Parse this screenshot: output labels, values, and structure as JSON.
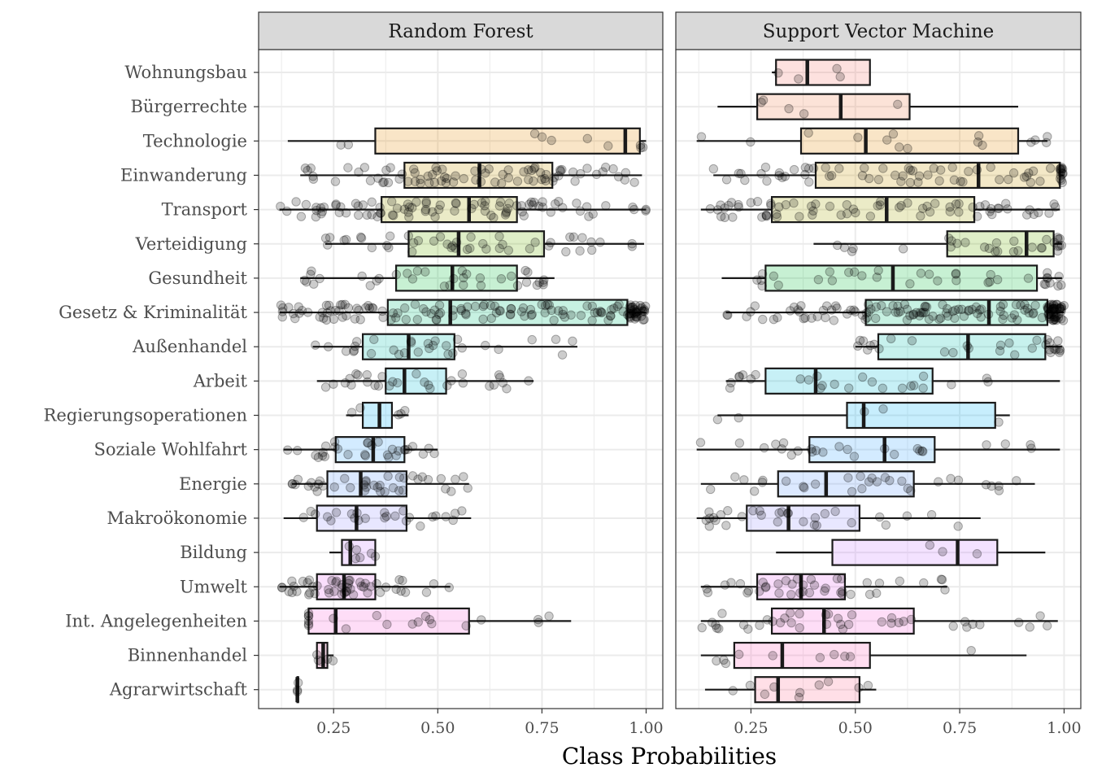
{
  "chart_data": {
    "type": "boxplot",
    "xlabel": "Class Probabilities",
    "ylabel": "",
    "xlim": [
      0.07,
      1.04
    ],
    "x_ticks": [
      0.25,
      0.5,
      0.75,
      1.0
    ],
    "x_tick_labels": [
      "0.25",
      "0.50",
      "0.75",
      "1.00"
    ],
    "grid": true,
    "legend": "none",
    "categories": [
      "Wohnungsbau",
      "Bürgerrechte",
      "Technologie",
      "Einwanderung",
      "Transport",
      "Verteidigung",
      "Gesundheit",
      "Gesetz & Kriminalität",
      "Außenhandel",
      "Arbeit",
      "Regierungsoperationen",
      "Soziale Wohlfahrt",
      "Energie",
      "Makroökonomie",
      "Bildung",
      "Umwelt",
      "Int. Angelegenheiten",
      "Binnenhandel",
      "Agrarwirtschaft"
    ],
    "colors": [
      "#F8766D",
      "#F07E4E",
      "#E58700",
      "#C99800",
      "#A3A500",
      "#6BB100",
      "#00BA38",
      "#00BF7D",
      "#00C0AF",
      "#00BCD8",
      "#00B0F6",
      "#35A2FF",
      "#619CFF",
      "#9590FF",
      "#C77CFF",
      "#E76BF3",
      "#FA62DB",
      "#FF62BC",
      "#FF6C91"
    ],
    "panels": [
      {
        "name": "Random Forest",
        "boxes": [
          {
            "category": "Agrarwirtschaft",
            "whisker_low": 0.163,
            "q1": 0.163,
            "median": 0.163,
            "q3": 0.165,
            "whisker_high": 0.165,
            "n_points": 3
          },
          {
            "category": "Binnenhandel",
            "whisker_low": 0.21,
            "q1": 0.21,
            "median": 0.225,
            "q3": 0.235,
            "whisker_high": 0.25,
            "n_points": 5
          },
          {
            "category": "Int. Angelegenheiten",
            "whisker_low": 0.19,
            "q1": 0.19,
            "median": 0.255,
            "q3": 0.575,
            "whisker_high": 0.82,
            "n_points": 20
          },
          {
            "category": "Umwelt",
            "whisker_low": 0.12,
            "q1": 0.21,
            "median": 0.275,
            "q3": 0.35,
            "whisker_high": 0.53,
            "n_points": 50
          },
          {
            "category": "Bildung",
            "whisker_low": 0.24,
            "q1": 0.27,
            "median": 0.29,
            "q3": 0.35,
            "whisker_high": 0.35,
            "n_points": 6
          },
          {
            "category": "Makroökonomie",
            "whisker_low": 0.13,
            "q1": 0.21,
            "median": 0.305,
            "q3": 0.425,
            "whisker_high": 0.58,
            "n_points": 25
          },
          {
            "category": "Energie",
            "whisker_low": 0.15,
            "q1": 0.235,
            "median": 0.315,
            "q3": 0.425,
            "whisker_high": 0.575,
            "n_points": 40
          },
          {
            "category": "Soziale Wohlfahrt",
            "whisker_low": 0.13,
            "q1": 0.255,
            "median": 0.345,
            "q3": 0.42,
            "whisker_high": 0.5,
            "n_points": 30
          },
          {
            "category": "Regierungsoperationen",
            "whisker_low": 0.28,
            "q1": 0.32,
            "median": 0.36,
            "q3": 0.39,
            "whisker_high": 0.43,
            "n_points": 5
          },
          {
            "category": "Arbeit",
            "whisker_low": 0.21,
            "q1": 0.375,
            "median": 0.42,
            "q3": 0.52,
            "whisker_high": 0.73,
            "n_points": 30
          },
          {
            "category": "Außenhandel",
            "whisker_low": 0.2,
            "q1": 0.32,
            "median": 0.43,
            "q3": 0.54,
            "whisker_high": 0.835,
            "n_points": 30
          },
          {
            "category": "Gesetz & Kriminalität",
            "whisker_low": 0.12,
            "q1": 0.38,
            "median": 0.53,
            "q3": 0.955,
            "whisker_high": 1.0,
            "n_points": 150
          },
          {
            "category": "Gesundheit",
            "whisker_low": 0.17,
            "q1": 0.4,
            "median": 0.535,
            "q3": 0.69,
            "whisker_high": 0.78,
            "n_points": 35
          },
          {
            "category": "Verteidigung",
            "whisker_low": 0.23,
            "q1": 0.43,
            "median": 0.55,
            "q3": 0.755,
            "whisker_high": 0.995,
            "n_points": 45
          },
          {
            "category": "Transport",
            "whisker_low": 0.12,
            "q1": 0.365,
            "median": 0.575,
            "q3": 0.69,
            "whisker_high": 1.0,
            "n_points": 90
          },
          {
            "category": "Einwanderung",
            "whisker_low": 0.17,
            "q1": 0.42,
            "median": 0.6,
            "q3": 0.775,
            "whisker_high": 0.99,
            "n_points": 80
          },
          {
            "category": "Technologie",
            "whisker_low": 0.14,
            "q1": 0.35,
            "median": 0.95,
            "q3": 0.985,
            "whisker_high": 1.0,
            "n_points": 10
          }
        ]
      },
      {
        "name": "Support Vector Machine",
        "boxes": [
          {
            "category": "Agrarwirtschaft",
            "whisker_low": 0.14,
            "q1": 0.26,
            "median": 0.315,
            "q3": 0.51,
            "whisker_high": 0.55,
            "n_points": 10
          },
          {
            "category": "Binnenhandel",
            "whisker_low": 0.13,
            "q1": 0.21,
            "median": 0.325,
            "q3": 0.535,
            "whisker_high": 0.91,
            "n_points": 10
          },
          {
            "category": "Int. Angelegenheiten",
            "whisker_low": 0.13,
            "q1": 0.3,
            "median": 0.425,
            "q3": 0.64,
            "whisker_high": 0.985,
            "n_points": 40
          },
          {
            "category": "Umwelt",
            "whisker_low": 0.13,
            "q1": 0.265,
            "median": 0.37,
            "q3": 0.475,
            "whisker_high": 0.72,
            "n_points": 40
          },
          {
            "category": "Bildung",
            "whisker_low": 0.31,
            "q1": 0.445,
            "median": 0.745,
            "q3": 0.84,
            "whisker_high": 0.955,
            "n_points": 3
          },
          {
            "category": "Makroökonomie",
            "whisker_low": 0.12,
            "q1": 0.24,
            "median": 0.34,
            "q3": 0.51,
            "whisker_high": 0.8,
            "n_points": 30
          },
          {
            "category": "Energie",
            "whisker_low": 0.13,
            "q1": 0.315,
            "median": 0.43,
            "q3": 0.64,
            "whisker_high": 0.93,
            "n_points": 30
          },
          {
            "category": "Soziale Wohlfahrt",
            "whisker_low": 0.12,
            "q1": 0.39,
            "median": 0.57,
            "q3": 0.69,
            "whisker_high": 0.99,
            "n_points": 25
          },
          {
            "category": "Regierungsoperationen",
            "whisker_low": 0.17,
            "q1": 0.48,
            "median": 0.52,
            "q3": 0.835,
            "whisker_high": 0.87,
            "n_points": 5
          },
          {
            "category": "Arbeit",
            "whisker_low": 0.19,
            "q1": 0.285,
            "median": 0.405,
            "q3": 0.685,
            "whisker_high": 0.99,
            "n_points": 25
          },
          {
            "category": "Außenhandel",
            "whisker_low": 0.5,
            "q1": 0.555,
            "median": 0.77,
            "q3": 0.955,
            "whisker_high": 0.995,
            "n_points": 30
          },
          {
            "category": "Gesetz & Kriminalität",
            "whisker_low": 0.19,
            "q1": 0.525,
            "median": 0.82,
            "q3": 0.96,
            "whisker_high": 1.0,
            "n_points": 150
          },
          {
            "category": "Gesundheit",
            "whisker_low": 0.18,
            "q1": 0.285,
            "median": 0.59,
            "q3": 0.935,
            "whisker_high": 0.995,
            "n_points": 35
          },
          {
            "category": "Verteidigung",
            "whisker_low": 0.4,
            "q1": 0.72,
            "median": 0.91,
            "q3": 0.975,
            "whisker_high": 0.995,
            "n_points": 30
          },
          {
            "category": "Transport",
            "whisker_low": 0.13,
            "q1": 0.3,
            "median": 0.575,
            "q3": 0.785,
            "whisker_high": 0.99,
            "n_points": 70
          },
          {
            "category": "Einwanderung",
            "whisker_low": 0.16,
            "q1": 0.405,
            "median": 0.795,
            "q3": 0.99,
            "whisker_high": 1.0,
            "n_points": 70
          },
          {
            "category": "Technologie",
            "whisker_low": 0.12,
            "q1": 0.37,
            "median": 0.525,
            "q3": 0.89,
            "whisker_high": 0.96,
            "n_points": 15
          },
          {
            "category": "Bürgerrechte",
            "whisker_low": 0.17,
            "q1": 0.265,
            "median": 0.465,
            "q3": 0.63,
            "whisker_high": 0.89,
            "n_points": 5
          },
          {
            "category": "Wohnungsbau",
            "whisker_low": 0.3,
            "q1": 0.31,
            "median": 0.385,
            "q3": 0.535,
            "whisker_high": 0.535,
            "n_points": 4
          }
        ]
      }
    ]
  },
  "colors": {
    "strip_fill": "#d9d9d9",
    "strip_border": "#333333",
    "panel_border": "#333333",
    "gridline": "#ebebeb",
    "box_outline": "#1a1a1a",
    "point": "#000000"
  }
}
